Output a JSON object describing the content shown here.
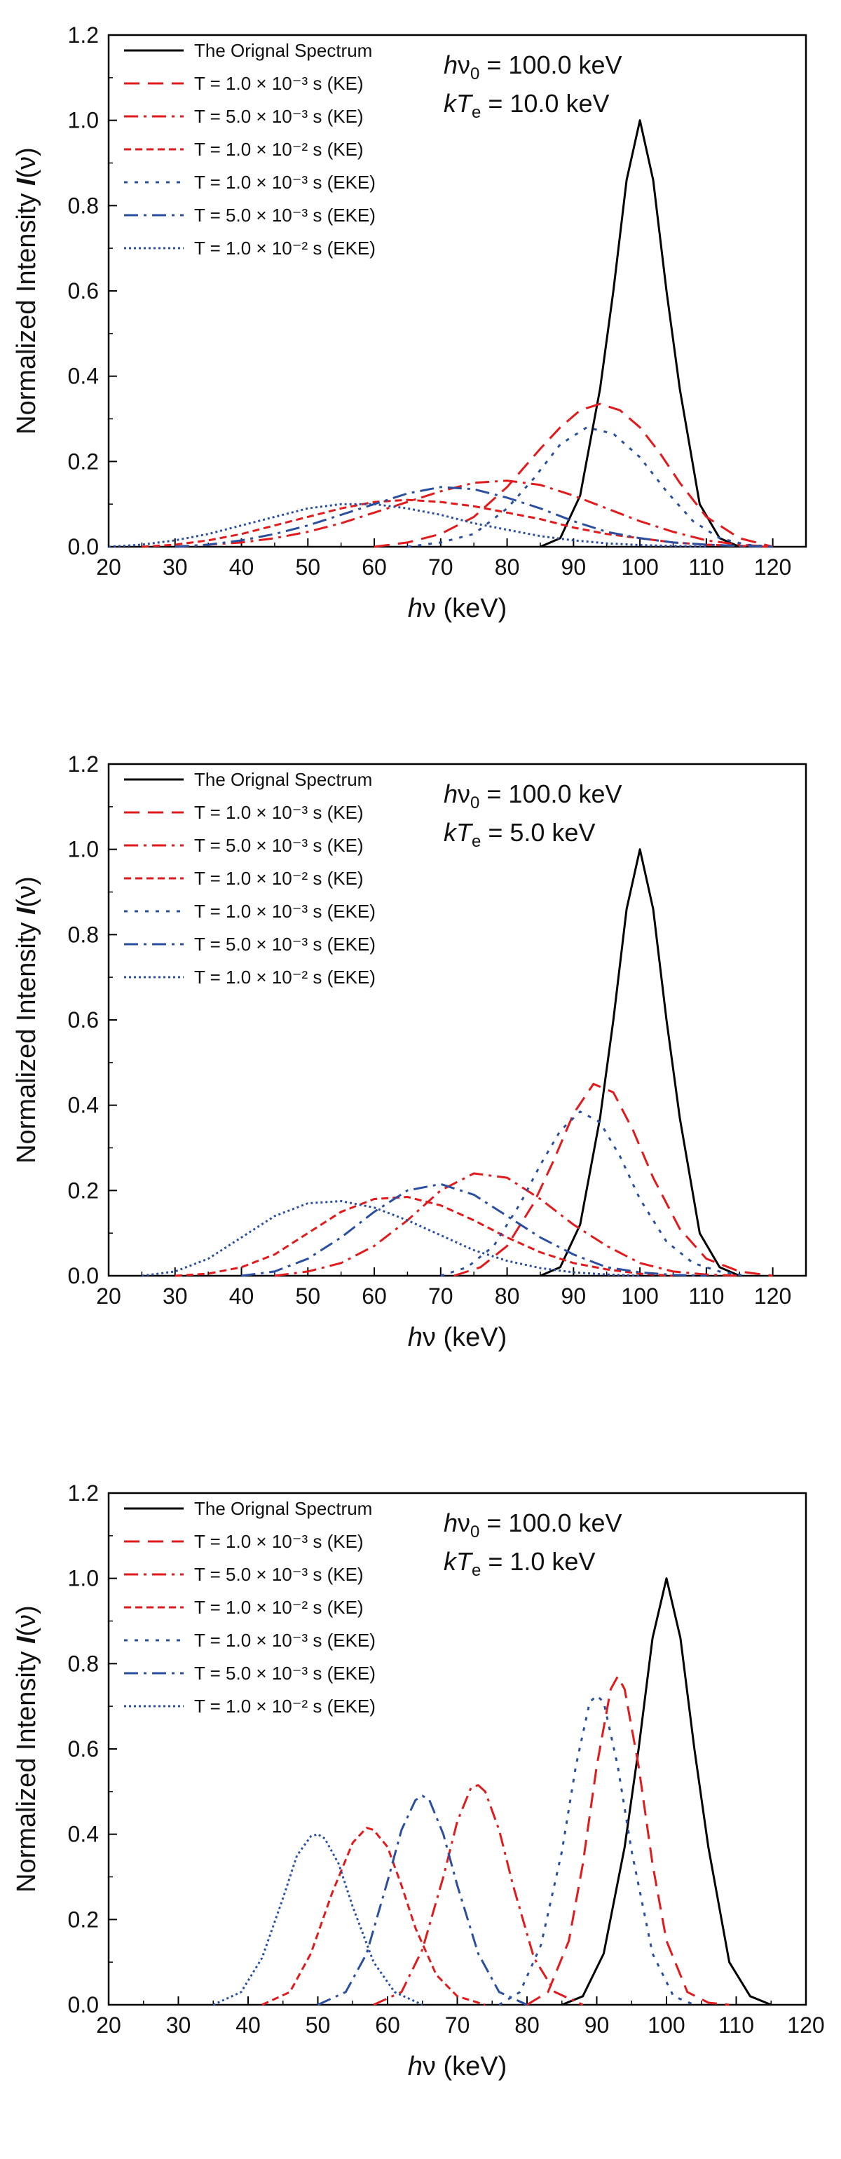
{
  "chart_data": [
    {
      "type": "line",
      "xlabel": "hν   (keV)",
      "ylabel": "Normalized Intensity  I(ν)",
      "xlim": [
        20,
        125
      ],
      "ylim": [
        0,
        1.2
      ],
      "xticks": [
        20,
        30,
        40,
        50,
        60,
        70,
        80,
        90,
        100,
        110,
        120
      ],
      "yticks": [
        "0.0",
        "0.2",
        "0.4",
        "0.6",
        "0.8",
        "1.0",
        "1.2"
      ],
      "annotation": {
        "line1": "hν0 = 100.0 keV",
        "line2": "kTe = 10.0 keV"
      },
      "legend_position": "top-left",
      "series": [
        {
          "name": "The Orignal Spectrum",
          "color": "#000000",
          "dash": "solid",
          "x": [
            85,
            88,
            91,
            94,
            96,
            98,
            100,
            102,
            104,
            106,
            109,
            112,
            115
          ],
          "y": [
            0.0,
            0.02,
            0.12,
            0.37,
            0.6,
            0.86,
            1.0,
            0.86,
            0.6,
            0.37,
            0.1,
            0.02,
            0.0
          ]
        },
        {
          "name": "T = 1.0 × 10⁻³ s (KE)",
          "color": "#e31a1c",
          "dash": "long-dash",
          "x": [
            60,
            65,
            70,
            75,
            80,
            85,
            88,
            91,
            94,
            97,
            100,
            103,
            106,
            110,
            115,
            120
          ],
          "y": [
            0.0,
            0.01,
            0.03,
            0.07,
            0.14,
            0.23,
            0.28,
            0.32,
            0.335,
            0.32,
            0.28,
            0.22,
            0.15,
            0.07,
            0.02,
            0.0
          ]
        },
        {
          "name": "T = 5.0 × 10⁻³ s (KE)",
          "color": "#e31a1c",
          "dash": "dash-dot",
          "x": [
            30,
            35,
            40,
            45,
            50,
            55,
            60,
            65,
            70,
            75,
            80,
            85,
            90,
            95,
            100,
            105,
            110,
            115,
            120
          ],
          "y": [
            0.0,
            0.005,
            0.01,
            0.02,
            0.035,
            0.055,
            0.08,
            0.105,
            0.13,
            0.15,
            0.155,
            0.145,
            0.12,
            0.09,
            0.06,
            0.035,
            0.015,
            0.005,
            0.0
          ]
        },
        {
          "name": "T = 1.0 × 10⁻² s (KE)",
          "color": "#e31a1c",
          "dash": "short-dash",
          "x": [
            25,
            30,
            35,
            40,
            45,
            50,
            55,
            60,
            65,
            70,
            75,
            80,
            85,
            90,
            95,
            100,
            105,
            110,
            115,
            120
          ],
          "y": [
            0.0,
            0.005,
            0.015,
            0.03,
            0.05,
            0.07,
            0.09,
            0.105,
            0.11,
            0.105,
            0.095,
            0.08,
            0.065,
            0.045,
            0.03,
            0.02,
            0.01,
            0.005,
            0.002,
            0.0
          ]
        },
        {
          "name": "T = 1.0 × 10⁻³ s (EKE)",
          "color": "#2b4fa0",
          "dash": "dot-spaced",
          "x": [
            65,
            70,
            75,
            80,
            84,
            88,
            92,
            96,
            100,
            104,
            108,
            112,
            116,
            120
          ],
          "y": [
            0.0,
            0.01,
            0.03,
            0.09,
            0.16,
            0.24,
            0.28,
            0.265,
            0.21,
            0.13,
            0.06,
            0.02,
            0.005,
            0.0
          ]
        },
        {
          "name": "T = 5.0 × 10⁻³ s (EKE)",
          "color": "#2b4fa0",
          "dash": "dash-dot",
          "x": [
            30,
            35,
            40,
            45,
            50,
            55,
            60,
            65,
            70,
            75,
            80,
            85,
            90,
            95,
            100,
            105,
            110,
            115,
            120
          ],
          "y": [
            0.0,
            0.005,
            0.015,
            0.03,
            0.05,
            0.075,
            0.1,
            0.125,
            0.14,
            0.135,
            0.115,
            0.09,
            0.06,
            0.035,
            0.02,
            0.01,
            0.005,
            0.002,
            0.0
          ]
        },
        {
          "name": "T = 1.0 × 10⁻² s (EKE)",
          "color": "#2b4fa0",
          "dash": "dotted",
          "x": [
            20,
            25,
            30,
            35,
            40,
            45,
            50,
            55,
            60,
            65,
            70,
            75,
            80,
            85,
            90,
            95,
            100,
            105,
            110
          ],
          "y": [
            0.0,
            0.005,
            0.015,
            0.03,
            0.05,
            0.07,
            0.09,
            0.1,
            0.1,
            0.09,
            0.075,
            0.055,
            0.04,
            0.025,
            0.015,
            0.008,
            0.004,
            0.002,
            0.0
          ]
        }
      ]
    },
    {
      "type": "line",
      "xlabel": "hν   (keV)",
      "ylabel": "Normalized Intensity  I(ν)",
      "xlim": [
        20,
        125
      ],
      "ylim": [
        0,
        1.2
      ],
      "xticks": [
        20,
        30,
        40,
        50,
        60,
        70,
        80,
        90,
        100,
        110,
        120
      ],
      "yticks": [
        "0.0",
        "0.2",
        "0.4",
        "0.6",
        "0.8",
        "1.0",
        "1.2"
      ],
      "annotation": {
        "line1": "hν0 = 100.0 keV",
        "line2": "kTe = 5.0 keV"
      },
      "legend_position": "top-left",
      "series": [
        {
          "name": "The Orignal Spectrum",
          "color": "#000000",
          "dash": "solid",
          "x": [
            85,
            88,
            91,
            94,
            96,
            98,
            100,
            102,
            104,
            106,
            109,
            112,
            115
          ],
          "y": [
            0.0,
            0.02,
            0.12,
            0.37,
            0.6,
            0.86,
            1.0,
            0.86,
            0.6,
            0.37,
            0.1,
            0.02,
            0.0
          ]
        },
        {
          "name": "T = 1.0 × 10⁻³ s (KE)",
          "color": "#e31a1c",
          "dash": "long-dash",
          "x": [
            72,
            76,
            80,
            84,
            87,
            90,
            93,
            96,
            99,
            102,
            106,
            110,
            115,
            120
          ],
          "y": [
            0.0,
            0.02,
            0.07,
            0.17,
            0.27,
            0.38,
            0.45,
            0.43,
            0.34,
            0.23,
            0.11,
            0.04,
            0.01,
            0.0
          ]
        },
        {
          "name": "T = 5.0 × 10⁻³ s (KE)",
          "color": "#e31a1c",
          "dash": "dash-dot",
          "x": [
            45,
            50,
            55,
            60,
            65,
            70,
            75,
            80,
            85,
            90,
            95,
            100,
            105,
            110,
            115
          ],
          "y": [
            0.0,
            0.01,
            0.03,
            0.07,
            0.13,
            0.2,
            0.24,
            0.23,
            0.18,
            0.12,
            0.07,
            0.03,
            0.01,
            0.003,
            0.0
          ]
        },
        {
          "name": "T = 1.0 × 10⁻² s (KE)",
          "color": "#e31a1c",
          "dash": "short-dash",
          "x": [
            30,
            35,
            40,
            45,
            50,
            55,
            60,
            65,
            70,
            75,
            80,
            85,
            90,
            95,
            100,
            105
          ],
          "y": [
            0.0,
            0.005,
            0.02,
            0.05,
            0.1,
            0.15,
            0.18,
            0.185,
            0.165,
            0.13,
            0.09,
            0.055,
            0.03,
            0.015,
            0.005,
            0.0
          ]
        },
        {
          "name": "T = 1.0 × 10⁻³ s (EKE)",
          "color": "#2b4fa0",
          "dash": "dot-spaced",
          "x": [
            70,
            74,
            78,
            82,
            85,
            88,
            91,
            94,
            97,
            100,
            104,
            108,
            112,
            116
          ],
          "y": [
            0.0,
            0.02,
            0.07,
            0.17,
            0.26,
            0.34,
            0.385,
            0.36,
            0.28,
            0.18,
            0.08,
            0.03,
            0.01,
            0.0
          ]
        },
        {
          "name": "T = 5.0 × 10⁻³ s (EKE)",
          "color": "#2b4fa0",
          "dash": "dash-dot",
          "x": [
            40,
            45,
            50,
            55,
            60,
            65,
            70,
            75,
            80,
            85,
            90,
            95,
            100,
            105,
            110
          ],
          "y": [
            0.0,
            0.01,
            0.04,
            0.09,
            0.15,
            0.2,
            0.215,
            0.19,
            0.14,
            0.09,
            0.05,
            0.02,
            0.008,
            0.002,
            0.0
          ]
        },
        {
          "name": "T = 1.0 × 10⁻² s (EKE)",
          "color": "#2b4fa0",
          "dash": "dotted",
          "x": [
            25,
            30,
            35,
            40,
            45,
            50,
            55,
            60,
            65,
            70,
            75,
            80,
            85,
            90,
            95,
            100
          ],
          "y": [
            0.0,
            0.01,
            0.04,
            0.09,
            0.14,
            0.17,
            0.175,
            0.16,
            0.13,
            0.095,
            0.06,
            0.035,
            0.018,
            0.008,
            0.003,
            0.0
          ]
        }
      ]
    },
    {
      "type": "line",
      "xlabel": "hν   (keV)",
      "ylabel": "Normalized Intensity  I(ν)",
      "xlim": [
        20,
        120
      ],
      "ylim": [
        0,
        1.2
      ],
      "xticks": [
        20,
        30,
        40,
        50,
        60,
        70,
        80,
        90,
        100,
        110,
        120
      ],
      "yticks": [
        "0.0",
        "0.2",
        "0.4",
        "0.6",
        "0.8",
        "1.0",
        "1.2"
      ],
      "annotation": {
        "line1": "hν0 = 100.0 keV",
        "line2": "kTe = 1.0 keV"
      },
      "legend_position": "top-left",
      "series": [
        {
          "name": "The Orignal Spectrum",
          "color": "#000000",
          "dash": "solid",
          "x": [
            85,
            88,
            91,
            94,
            96,
            98,
            100,
            102,
            104,
            106,
            109,
            112,
            115
          ],
          "y": [
            0.0,
            0.02,
            0.12,
            0.37,
            0.6,
            0.86,
            1.0,
            0.86,
            0.6,
            0.37,
            0.1,
            0.02,
            0.0
          ]
        },
        {
          "name": "T = 1.0 × 10⁻³ s (KE)",
          "color": "#e31a1c",
          "dash": "long-dash",
          "x": [
            80,
            83,
            86,
            88,
            90,
            92,
            93,
            94,
            96,
            98,
            100,
            103,
            106,
            109
          ],
          "y": [
            0.0,
            0.03,
            0.15,
            0.33,
            0.56,
            0.74,
            0.77,
            0.74,
            0.56,
            0.33,
            0.15,
            0.03,
            0.005,
            0.0
          ]
        },
        {
          "name": "T = 5.0 × 10⁻³ s (KE)",
          "color": "#e31a1c",
          "dash": "dash-dot",
          "x": [
            58,
            62,
            65,
            68,
            70,
            72,
            73,
            74,
            76,
            78,
            81,
            84,
            88
          ],
          "y": [
            0.0,
            0.03,
            0.13,
            0.3,
            0.43,
            0.51,
            0.515,
            0.5,
            0.41,
            0.28,
            0.11,
            0.03,
            0.0
          ]
        },
        {
          "name": "T = 1.0 × 10⁻² s (KE)",
          "color": "#e31a1c",
          "dash": "short-dash",
          "x": [
            42,
            46,
            49,
            52,
            55,
            57,
            58,
            60,
            62,
            64,
            67,
            70,
            74
          ],
          "y": [
            0.0,
            0.03,
            0.12,
            0.26,
            0.38,
            0.415,
            0.41,
            0.37,
            0.28,
            0.18,
            0.07,
            0.02,
            0.0
          ]
        },
        {
          "name": "T = 1.0 × 10⁻³ s (EKE)",
          "color": "#2b4fa0",
          "dash": "dot-spaced",
          "x": [
            76,
            79,
            82,
            85,
            87,
            89,
            90,
            91,
            93,
            95,
            98,
            101,
            104
          ],
          "y": [
            0.0,
            0.03,
            0.14,
            0.36,
            0.56,
            0.71,
            0.725,
            0.71,
            0.56,
            0.36,
            0.12,
            0.02,
            0.0
          ]
        },
        {
          "name": "T = 5.0 × 10⁻³ s (EKE)",
          "color": "#2b4fa0",
          "dash": "dash-dot",
          "x": [
            50,
            54,
            57,
            60,
            62,
            64,
            65,
            66,
            68,
            70,
            73,
            76,
            80
          ],
          "y": [
            0.0,
            0.03,
            0.12,
            0.29,
            0.41,
            0.48,
            0.49,
            0.48,
            0.4,
            0.28,
            0.12,
            0.03,
            0.0
          ]
        },
        {
          "name": "T = 1.0 × 10⁻² s (EKE)",
          "color": "#2b4fa0",
          "dash": "dotted",
          "x": [
            35,
            39,
            42,
            45,
            47,
            49,
            50,
            51,
            53,
            55,
            58,
            61,
            65
          ],
          "y": [
            0.0,
            0.03,
            0.11,
            0.25,
            0.35,
            0.395,
            0.4,
            0.39,
            0.33,
            0.23,
            0.1,
            0.03,
            0.0
          ]
        }
      ]
    }
  ]
}
